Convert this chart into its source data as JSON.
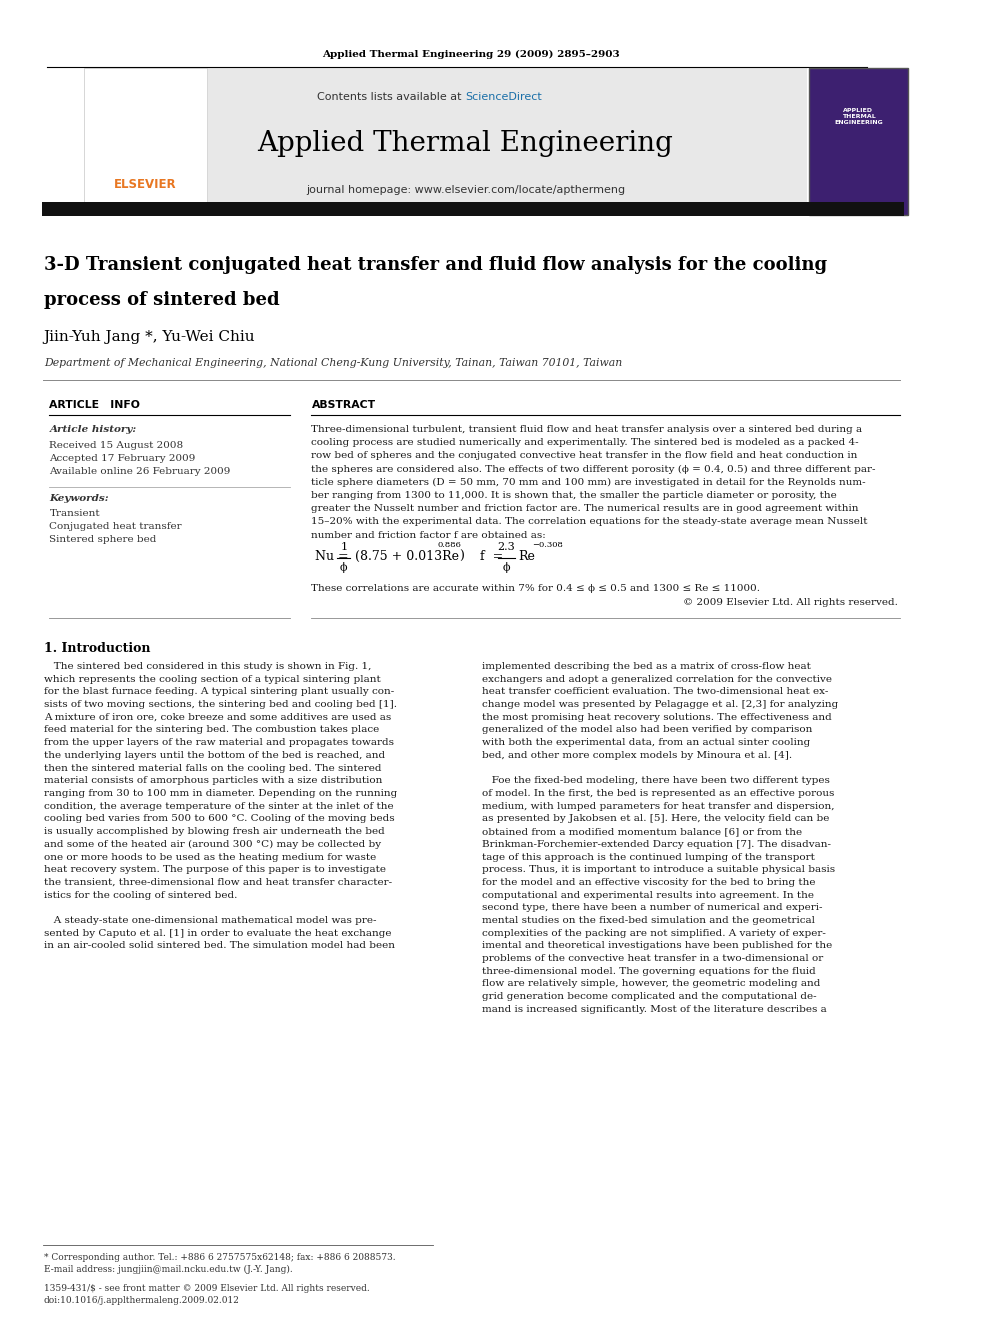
{
  "page_width": 9.92,
  "page_height": 13.23,
  "bg_color": "#ffffff",
  "top_journal_ref": "Applied Thermal Engineering 29 (2009) 2895–2903",
  "contents_line_pre": "Contents lists available at ",
  "contents_line_link": "ScienceDirect",
  "sciencedirect_color": "#1a6fa8",
  "journal_title": "Applied Thermal Engineering",
  "journal_homepage": "journal homepage: www.elsevier.com/locate/apthermeng",
  "header_bg": "#e8e8e8",
  "paper_title_line1": "3-D Transient conjugated heat transfer and fluid flow analysis for the cooling",
  "paper_title_line2": "process of sintered bed",
  "authors": "Jiin-Yuh Jang *, Yu-Wei Chiu",
  "affiliation": "Department of Mechanical Engineering, National Cheng-Kung University, Tainan, Taiwan 70101, Taiwan",
  "article_info_label": "ARTICLE   INFO",
  "abstract_label": "ABSTRACT",
  "article_history_label": "Article history:",
  "received": "Received 15 August 2008",
  "accepted": "Accepted 17 February 2009",
  "available": "Available online 26 February 2009",
  "keywords_label": "Keywords:",
  "keyword1": "Transient",
  "keyword2": "Conjugated heat transfer",
  "keyword3": "Sintered sphere bed",
  "correlation_note": "These correlations are accurate within 7% for 0.4 ≤ ϕ ≤ 0.5 and 1300 ≤ Re ≤ 11000.",
  "copyright": "© 2009 Elsevier Ltd. All rights reserved.",
  "intro_heading": "1. Introduction",
  "footer_line1": "* Corresponding author. Tel.: +886 6 2757575x62148; fax: +886 6 2088573.",
  "footer_line2": "E-mail address: jungjiin@mail.ncku.edu.tw (J.-Y. Jang).",
  "footer_issn": "1359-431/$ - see front matter © 2009 Elsevier Ltd. All rights reserved.",
  "footer_doi": "doi:10.1016/j.applthermaleng.2009.02.012",
  "abstract_lines": [
    "Three-dimensional turbulent, transient fluid flow and heat transfer analysis over a sintered bed during a",
    "cooling process are studied numerically and experimentally. The sintered bed is modeled as a packed 4-",
    "row bed of spheres and the conjugated convective heat transfer in the flow field and heat conduction in",
    "the spheres are considered also. The effects of two different porosity (ϕ = 0.4, 0.5) and three different par-",
    "ticle sphere diameters (D = 50 mm, 70 mm and 100 mm) are investigated in detail for the Reynolds num-",
    "ber ranging from 1300 to 11,000. It is shown that, the smaller the particle diameter or porosity, the",
    "greater the Nusselt number and friction factor are. The numerical results are in good agreement within",
    "15–20% with the experimental data. The correlation equations for the steady-state average mean Nusselt",
    "number and friction factor f are obtained as:"
  ],
  "intro_left_lines": [
    "   The sintered bed considered in this study is shown in Fig. 1,",
    "which represents the cooling section of a typical sintering plant",
    "for the blast furnace feeding. A typical sintering plant usually con-",
    "sists of two moving sections, the sintering bed and cooling bed [1].",
    "A mixture of iron ore, coke breeze and some additives are used as",
    "feed material for the sintering bed. The combustion takes place",
    "from the upper layers of the raw material and propagates towards",
    "the underlying layers until the bottom of the bed is reached, and",
    "then the sintered material falls on the cooling bed. The sintered",
    "material consists of amorphous particles with a size distribution",
    "ranging from 30 to 100 mm in diameter. Depending on the running",
    "condition, the average temperature of the sinter at the inlet of the",
    "cooling bed varies from 500 to 600 °C. Cooling of the moving beds",
    "is usually accomplished by blowing fresh air underneath the bed",
    "and some of the heated air (around 300 °C) may be collected by",
    "one or more hoods to be used as the heating medium for waste",
    "heat recovery system. The purpose of this paper is to investigate",
    "the transient, three-dimensional flow and heat transfer character-",
    "istics for the cooling of sintered bed.",
    "",
    "   A steady-state one-dimensional mathematical model was pre-",
    "sented by Caputo et al. [1] in order to evaluate the heat exchange",
    "in an air-cooled solid sintered bed. The simulation model had been"
  ],
  "intro_right_lines": [
    "implemented describing the bed as a matrix of cross-flow heat",
    "exchangers and adopt a generalized correlation for the convective",
    "heat transfer coefficient evaluation. The two-dimensional heat ex-",
    "change model was presented by Pelagagge et al. [2,3] for analyzing",
    "the most promising heat recovery solutions. The effectiveness and",
    "generalized of the model also had been verified by comparison",
    "with both the experimental data, from an actual sinter cooling",
    "bed, and other more complex models by Minoura et al. [4].",
    "",
    "   Foe the fixed-bed modeling, there have been two different types",
    "of model. In the first, the bed is represented as an effective porous",
    "medium, with lumped parameters for heat transfer and dispersion,",
    "as presented by Jakobsen et al. [5]. Here, the velocity field can be",
    "obtained from a modified momentum balance [6] or from the",
    "Brinkman-Forchemier-extended Darcy equation [7]. The disadvan-",
    "tage of this approach is the continued lumping of the transport",
    "process. Thus, it is important to introduce a suitable physical basis",
    "for the model and an effective viscosity for the bed to bring the",
    "computational and experimental results into agreement. In the",
    "second type, there have been a number of numerical and experi-",
    "mental studies on the fixed-bed simulation and the geometrical",
    "complexities of the packing are not simplified. A variety of exper-",
    "imental and theoretical investigations have been published for the",
    "problems of the convective heat transfer in a two-dimensional or",
    "three-dimensional model. The governing equations for the fluid",
    "flow are relatively simple, however, the geometric modeling and",
    "grid generation become complicated and the computational de-",
    "mand is increased significantly. Most of the literature describes a"
  ]
}
